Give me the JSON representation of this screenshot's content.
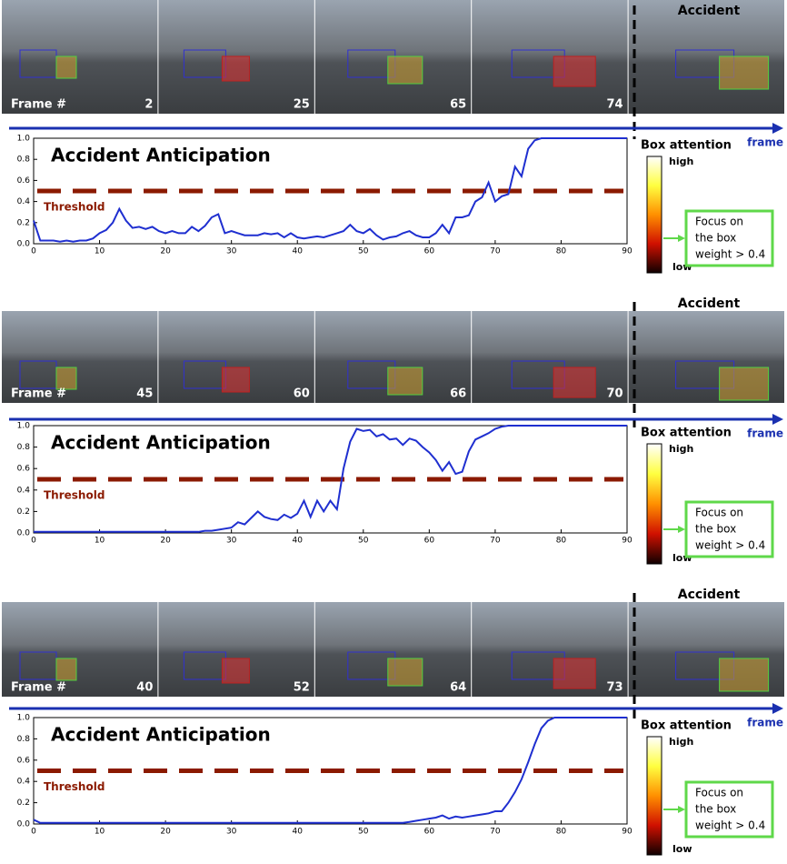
{
  "chart_data": [
    {
      "type": "line",
      "title": "Accident Anticipation",
      "axis_label": "frame",
      "accident_label": "Accident",
      "frames": {
        "label": "Frame #",
        "numbers": [
          2,
          25,
          65,
          74
        ]
      },
      "threshold": 0.5,
      "threshold_label": "Threshold",
      "threshold_color": "#8b1a00",
      "colorbar": {
        "title": "Box attention",
        "high": "high",
        "low": "low"
      },
      "note": [
        "Focus on",
        "the box",
        "weight > 0.4"
      ],
      "xlim": [
        0,
        90
      ],
      "ylim": [
        0,
        1
      ],
      "xticks": [
        0,
        10,
        20,
        30,
        40,
        50,
        60,
        70,
        80,
        90
      ],
      "yticks": [
        {
          "value": 0,
          "label": "0.0"
        },
        {
          "value": 0.2,
          "label": "0.2"
        },
        {
          "value": 0.4,
          "label": "0.4"
        },
        {
          "value": 0.6,
          "label": "0.6"
        },
        {
          "value": 0.8,
          "label": "0.8"
        },
        {
          "value": 1,
          "label": "1.0"
        }
      ],
      "color": "#1f2fd0",
      "x": [
        0,
        1,
        2,
        3,
        4,
        5,
        6,
        7,
        8,
        9,
        10,
        11,
        12,
        13,
        14,
        15,
        16,
        17,
        18,
        19,
        20,
        21,
        22,
        23,
        24,
        25,
        26,
        27,
        28,
        29,
        30,
        31,
        32,
        33,
        34,
        35,
        36,
        37,
        38,
        39,
        40,
        41,
        42,
        43,
        44,
        45,
        46,
        47,
        48,
        49,
        50,
        51,
        52,
        53,
        54,
        55,
        56,
        57,
        58,
        59,
        60,
        61,
        62,
        63,
        64,
        65,
        66,
        67,
        68,
        69,
        70,
        71,
        72,
        73,
        74,
        75,
        76,
        77,
        78,
        79,
        80,
        81,
        82,
        83,
        84,
        85,
        86,
        87,
        88,
        89,
        90
      ],
      "values": [
        0.22,
        0.03,
        0.03,
        0.03,
        0.02,
        0.03,
        0.02,
        0.03,
        0.03,
        0.05,
        0.1,
        0.13,
        0.2,
        0.33,
        0.22,
        0.15,
        0.16,
        0.14,
        0.16,
        0.12,
        0.1,
        0.12,
        0.1,
        0.1,
        0.16,
        0.12,
        0.17,
        0.25,
        0.28,
        0.1,
        0.12,
        0.1,
        0.08,
        0.08,
        0.08,
        0.1,
        0.09,
        0.1,
        0.06,
        0.1,
        0.06,
        0.05,
        0.06,
        0.07,
        0.06,
        0.08,
        0.1,
        0.12,
        0.18,
        0.12,
        0.1,
        0.14,
        0.08,
        0.04,
        0.06,
        0.07,
        0.1,
        0.12,
        0.08,
        0.06,
        0.06,
        0.1,
        0.18,
        0.1,
        0.25,
        0.25,
        0.27,
        0.4,
        0.44,
        0.58,
        0.4,
        0.45,
        0.47,
        0.73,
        0.64,
        0.9,
        0.98,
        1,
        1,
        1,
        1,
        1,
        1,
        1,
        1,
        1,
        1,
        1,
        1,
        1,
        1
      ]
    },
    {
      "type": "line",
      "title": "Accident Anticipation",
      "axis_label": "frame",
      "accident_label": "Accident",
      "frames": {
        "label": "Frame #",
        "numbers": [
          45,
          60,
          66,
          70
        ]
      },
      "threshold": 0.5,
      "threshold_label": "Threshold",
      "threshold_color": "#8b1a00",
      "colorbar": {
        "title": "Box attention",
        "high": "high",
        "low": "low"
      },
      "note": [
        "Focus on",
        "the box",
        "weight > 0.4"
      ],
      "xlim": [
        0,
        90
      ],
      "ylim": [
        0,
        1
      ],
      "xticks": [
        0,
        10,
        20,
        30,
        40,
        50,
        60,
        70,
        80,
        90
      ],
      "yticks": [
        {
          "value": 0,
          "label": "0.0"
        },
        {
          "value": 0.2,
          "label": "0.2"
        },
        {
          "value": 0.4,
          "label": "0.4"
        },
        {
          "value": 0.6,
          "label": "0.6"
        },
        {
          "value": 0.8,
          "label": "0.8"
        },
        {
          "value": 1,
          "label": "1.0"
        }
      ],
      "color": "#1f2fd0",
      "x": [
        0,
        1,
        2,
        3,
        4,
        5,
        6,
        7,
        8,
        9,
        10,
        11,
        12,
        13,
        14,
        15,
        16,
        17,
        18,
        19,
        20,
        21,
        22,
        23,
        24,
        25,
        26,
        27,
        28,
        29,
        30,
        31,
        32,
        33,
        34,
        35,
        36,
        37,
        38,
        39,
        40,
        41,
        42,
        43,
        44,
        45,
        46,
        47,
        48,
        49,
        50,
        51,
        52,
        53,
        54,
        55,
        56,
        57,
        58,
        59,
        60,
        61,
        62,
        63,
        64,
        65,
        66,
        67,
        68,
        69,
        70,
        71,
        72,
        73,
        74,
        75,
        76,
        77,
        78,
        79,
        80,
        81,
        82,
        83,
        84,
        85,
        86,
        87,
        88,
        89,
        90
      ],
      "values": [
        0.01,
        0.01,
        0.01,
        0.01,
        0.01,
        0.01,
        0.01,
        0.01,
        0.01,
        0.01,
        0.01,
        0.01,
        0.01,
        0.01,
        0.01,
        0.01,
        0.01,
        0.01,
        0.01,
        0.01,
        0.01,
        0.01,
        0.01,
        0.01,
        0.01,
        0.01,
        0.02,
        0.02,
        0.03,
        0.04,
        0.05,
        0.1,
        0.08,
        0.14,
        0.2,
        0.15,
        0.13,
        0.12,
        0.17,
        0.14,
        0.18,
        0.3,
        0.15,
        0.3,
        0.2,
        0.3,
        0.22,
        0.6,
        0.85,
        0.97,
        0.95,
        0.96,
        0.9,
        0.92,
        0.87,
        0.88,
        0.82,
        0.88,
        0.86,
        0.8,
        0.75,
        0.68,
        0.58,
        0.66,
        0.55,
        0.57,
        0.76,
        0.87,
        0.9,
        0.93,
        0.97,
        0.99,
        1,
        1,
        1,
        1,
        1,
        1,
        1,
        1,
        1,
        1,
        1,
        1,
        1,
        1,
        1,
        1,
        1,
        1,
        1
      ]
    },
    {
      "type": "line",
      "title": "Accident Anticipation",
      "axis_label": "frame",
      "accident_label": "Accident",
      "frames": {
        "label": "Frame #",
        "numbers": [
          40,
          52,
          64,
          73
        ]
      },
      "threshold": 0.5,
      "threshold_label": "Threshold",
      "threshold_color": "#8b1a00",
      "colorbar": {
        "title": "Box attention",
        "high": "high",
        "low": "low"
      },
      "note": [
        "Focus on",
        "the box",
        "weight > 0.4"
      ],
      "xlim": [
        0,
        90
      ],
      "ylim": [
        0,
        1
      ],
      "xticks": [
        0,
        10,
        20,
        30,
        40,
        50,
        60,
        70,
        80,
        90
      ],
      "yticks": [
        {
          "value": 0,
          "label": "0.0"
        },
        {
          "value": 0.2,
          "label": "0.2"
        },
        {
          "value": 0.4,
          "label": "0.4"
        },
        {
          "value": 0.6,
          "label": "0.6"
        },
        {
          "value": 0.8,
          "label": "0.8"
        },
        {
          "value": 1,
          "label": "1.0"
        }
      ],
      "color": "#1f2fd0",
      "x": [
        0,
        1,
        2,
        3,
        4,
        5,
        6,
        7,
        8,
        9,
        10,
        11,
        12,
        13,
        14,
        15,
        16,
        17,
        18,
        19,
        20,
        21,
        22,
        23,
        24,
        25,
        26,
        27,
        28,
        29,
        30,
        31,
        32,
        33,
        34,
        35,
        36,
        37,
        38,
        39,
        40,
        41,
        42,
        43,
        44,
        45,
        46,
        47,
        48,
        49,
        50,
        51,
        52,
        53,
        54,
        55,
        56,
        57,
        58,
        59,
        60,
        61,
        62,
        63,
        64,
        65,
        66,
        67,
        68,
        69,
        70,
        71,
        72,
        73,
        74,
        75,
        76,
        77,
        78,
        79,
        80,
        81,
        82,
        83,
        84,
        85,
        86,
        87,
        88,
        89,
        90
      ],
      "values": [
        0.04,
        0.01,
        0.01,
        0.01,
        0.01,
        0.01,
        0.01,
        0.01,
        0.01,
        0.01,
        0.01,
        0.01,
        0.01,
        0.01,
        0.01,
        0.01,
        0.01,
        0.01,
        0.01,
        0.01,
        0.01,
        0.01,
        0.01,
        0.01,
        0.01,
        0.01,
        0.01,
        0.01,
        0.01,
        0.01,
        0.01,
        0.01,
        0.01,
        0.01,
        0.01,
        0.01,
        0.01,
        0.01,
        0.01,
        0.01,
        0.01,
        0.01,
        0.01,
        0.01,
        0.01,
        0.01,
        0.01,
        0.01,
        0.01,
        0.01,
        0.01,
        0.01,
        0.01,
        0.01,
        0.01,
        0.01,
        0.01,
        0.02,
        0.03,
        0.04,
        0.05,
        0.06,
        0.08,
        0.05,
        0.07,
        0.06,
        0.07,
        0.08,
        0.09,
        0.1,
        0.12,
        0.12,
        0.2,
        0.3,
        0.42,
        0.58,
        0.75,
        0.9,
        0.97,
        1,
        1,
        1,
        1,
        1,
        1,
        1,
        1,
        1,
        1,
        1,
        1
      ]
    }
  ]
}
